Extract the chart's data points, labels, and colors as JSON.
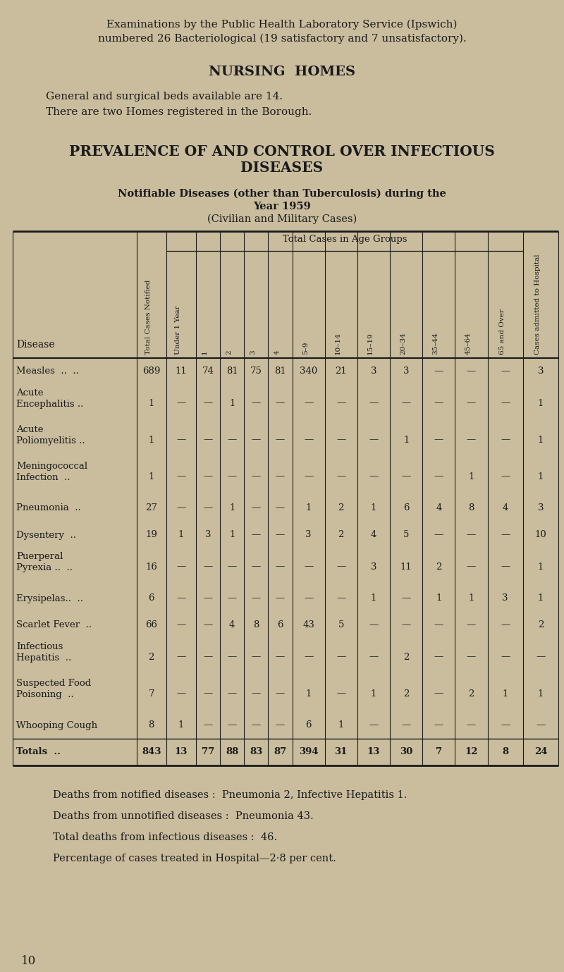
{
  "bg_color": "#c9bd9e",
  "text_color": "#1a1a1a",
  "page_width": 8.0,
  "page_height": 13.79,
  "intro_line1": "Examinations by the Public Health Laboratory Service (Ipswich)",
  "intro_line2": "numbered 26 Bacteriological (19 satisfactory and 7 unsatisfactory).",
  "nursing_heading": "NURSING  HOMES",
  "nursing_line1": "General and surgical beds available are 14.",
  "nursing_line2": "There are two Homes registered in the Borough.",
  "prev_heading1": "PREVALENCE OF AND CONTROL OVER INFECTIOUS",
  "prev_heading2": "DISEASES",
  "table_heading1": "Notifiable Diseases (other than Tuberculosis) during the",
  "table_heading2": "Year 1959",
  "table_subheading": "(Civilian and Military Cases)",
  "col_group_header": "Total Cases in Age Groups",
  "rotated_labels": [
    "Total Cases Notified",
    "Under 1 Year",
    "1",
    "2",
    "3",
    "4",
    "5–9",
    "10–14",
    "15–19",
    "20–34",
    "35–44",
    "45–64",
    "65 and Over",
    "Cases admitted to Hospital"
  ],
  "diseases": [
    {
      "name1": "Measles  ..  ..",
      "name2": "",
      "total": "689",
      "vals": [
        "11",
        "74",
        "81",
        "75",
        "81",
        "340",
        "21",
        "3",
        "3",
        "—",
        "—",
        "—",
        "3"
      ]
    },
    {
      "name1": "Acute",
      "name2": "  Encephalitis ..",
      "total": "1",
      "vals": [
        "—",
        "—",
        "1",
        "—",
        "—",
        "—",
        "—",
        "—",
        "—",
        "—",
        "—",
        "—",
        "1"
      ]
    },
    {
      "name1": "Acute",
      "name2": "  Poliomyelitis ..",
      "total": "1",
      "vals": [
        "—",
        "—",
        "—",
        "—",
        "—",
        "—",
        "—",
        "—",
        "1",
        "—",
        "—",
        "—",
        "1"
      ]
    },
    {
      "name1": "Meningococcal",
      "name2": "  Infection  ..",
      "total": "1",
      "vals": [
        "—",
        "—",
        "—",
        "—",
        "—",
        "—",
        "—",
        "—",
        "—",
        "—",
        "1",
        "—",
        "1"
      ]
    },
    {
      "name1": "Pneumonia  ..",
      "name2": "",
      "total": "27",
      "vals": [
        "—",
        "—",
        "1",
        "—",
        "—",
        "1",
        "2",
        "1",
        "6",
        "4",
        "8",
        "4",
        "3"
      ]
    },
    {
      "name1": "Dysentery  ..",
      "name2": "",
      "total": "19",
      "vals": [
        "1",
        "3",
        "1",
        "—",
        "—",
        "3",
        "2",
        "4",
        "5",
        "—",
        "—",
        "—",
        "10"
      ]
    },
    {
      "name1": "Puerperal",
      "name2": "  Pyrexia ..  ..",
      "total": "16",
      "vals": [
        "—",
        "—",
        "—",
        "—",
        "—",
        "—",
        "—",
        "3",
        "11",
        "2",
        "—",
        "—",
        "1"
      ]
    },
    {
      "name1": "Erysipelas..  ..",
      "name2": "",
      "total": "6",
      "vals": [
        "—",
        "—",
        "—",
        "—",
        "—",
        "—",
        "—",
        "1",
        "—",
        "1",
        "1",
        "3",
        "1"
      ]
    },
    {
      "name1": "Scarlet Fever  ..",
      "name2": "",
      "total": "66",
      "vals": [
        "—",
        "—",
        "4",
        "8",
        "6",
        "43",
        "5",
        "—",
        "—",
        "—",
        "—",
        "—",
        "2"
      ]
    },
    {
      "name1": "Infectious",
      "name2": "  Hepatitis  ..",
      "total": "2",
      "vals": [
        "—",
        "—",
        "—",
        "—",
        "—",
        "—",
        "—",
        "—",
        "2",
        "—",
        "—",
        "—",
        "—"
      ]
    },
    {
      "name1": "Suspected Food",
      "name2": "  Poisoning  ..",
      "total": "7",
      "vals": [
        "—",
        "—",
        "—",
        "—",
        "—",
        "1",
        "—",
        "1",
        "2",
        "—",
        "2",
        "1",
        "1"
      ]
    },
    {
      "name1": "Whooping Cough",
      "name2": "",
      "total": "8",
      "vals": [
        "1",
        "—",
        "—",
        "—",
        "—",
        "6",
        "1",
        "—",
        "—",
        "—",
        "—",
        "—",
        "—"
      ]
    },
    {
      "name1": "Totals  ..",
      "name2": "",
      "total": "843",
      "vals": [
        "13",
        "77",
        "88",
        "83",
        "87",
        "394",
        "31",
        "13",
        "30",
        "7",
        "12",
        "8",
        "24"
      ],
      "bold": true
    }
  ],
  "footer_lines": [
    "Deaths from notified diseases :  Pneumonia 2, Infective Hepatitis 1.",
    "Deaths from unnotified diseases :  Pneumonia 43.",
    "Total deaths from infectious diseases :  46.",
    "Percentage of cases treated in Hospital—2·8 per cent."
  ],
  "page_number": "10"
}
